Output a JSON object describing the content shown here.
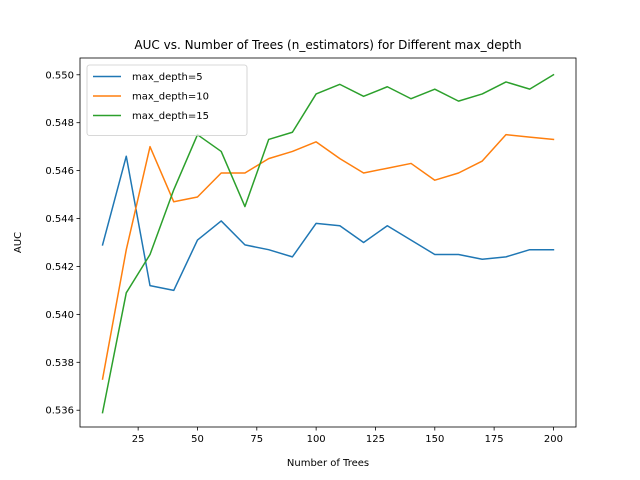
{
  "chart_data": {
    "type": "line",
    "title": "AUC vs. Number of Trees (n_estimators) for Different max_depth",
    "xlabel": "Number of Trees",
    "ylabel": "AUC",
    "xlim": [
      0.5,
      209.5
    ],
    "ylim": [
      0.5353,
      0.5507
    ],
    "xticks": [
      25,
      50,
      75,
      100,
      125,
      150,
      175,
      200
    ],
    "yticks": [
      0.536,
      0.538,
      0.54,
      0.542,
      0.544,
      0.546,
      0.548,
      0.55
    ],
    "xtick_labels": [
      "25",
      "50",
      "75",
      "100",
      "125",
      "150",
      "175",
      "200"
    ],
    "ytick_labels": [
      "0.536",
      "0.538",
      "0.540",
      "0.542",
      "0.544",
      "0.546",
      "0.548",
      "0.550"
    ],
    "legend_position": "upper-left",
    "grid": false,
    "x": [
      10,
      20,
      30,
      40,
      50,
      60,
      70,
      80,
      90,
      100,
      110,
      120,
      130,
      140,
      150,
      160,
      170,
      180,
      190,
      200
    ],
    "series": [
      {
        "name": "max_depth=5",
        "color": "#1f77b4",
        "values": [
          0.5429,
          0.5466,
          0.5412,
          0.541,
          0.5431,
          0.5439,
          0.5429,
          0.5427,
          0.5424,
          0.5438,
          0.5437,
          0.543,
          0.5437,
          0.5431,
          0.5425,
          0.5425,
          0.5423,
          0.5424,
          0.5427,
          0.5427
        ]
      },
      {
        "name": "max_depth=10",
        "color": "#ff7f0e",
        "values": [
          0.5373,
          0.5427,
          0.547,
          0.5447,
          0.5449,
          0.5459,
          0.5459,
          0.5465,
          0.5468,
          0.5472,
          0.5465,
          0.5459,
          0.5461,
          0.5463,
          0.5456,
          0.5459,
          0.5464,
          0.5475,
          0.5474,
          0.5473
        ]
      },
      {
        "name": "max_depth=15",
        "color": "#2ca02c",
        "values": [
          0.5359,
          0.5409,
          0.5425,
          0.5452,
          0.5475,
          0.5468,
          0.5445,
          0.5473,
          0.5476,
          0.5492,
          0.5496,
          0.5491,
          0.5495,
          0.549,
          0.5494,
          0.5489,
          0.5492,
          0.5497,
          0.5494,
          0.55
        ]
      }
    ]
  }
}
